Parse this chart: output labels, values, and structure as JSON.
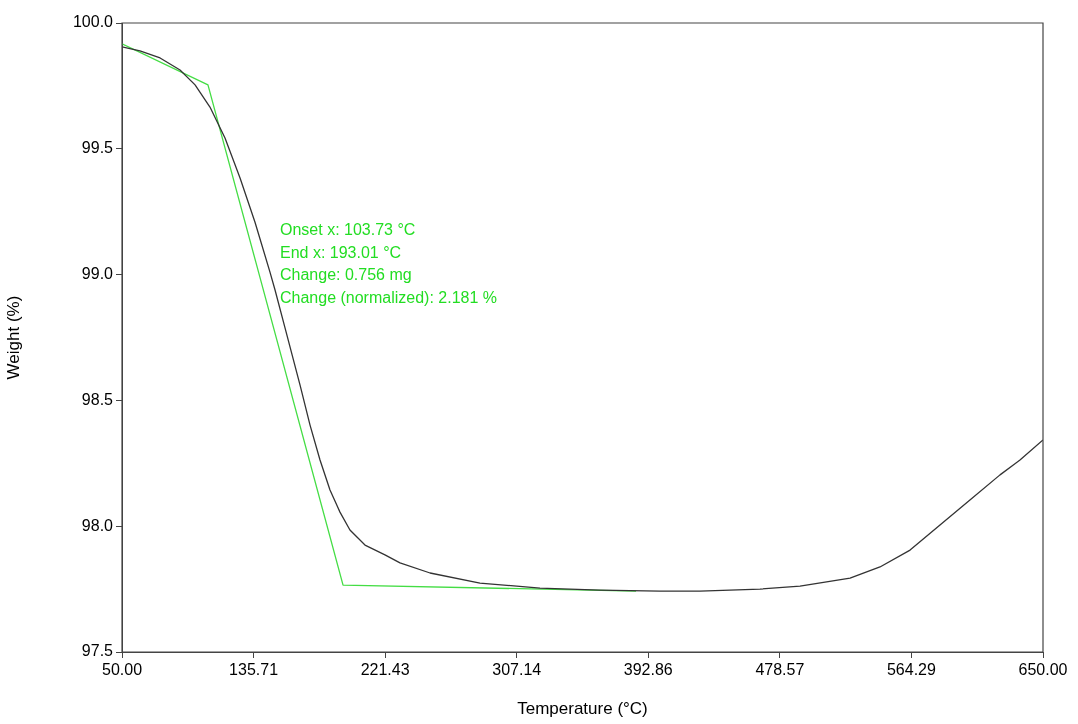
{
  "chart_data": {
    "type": "line",
    "xlabel": "Temperature (°C)",
    "ylabel": "Weight (%)",
    "xlim": [
      50,
      650
    ],
    "ylim": [
      97.5,
      100
    ],
    "xticks": [
      {
        "value": 50,
        "label": "50.00"
      },
      {
        "value": 135.71,
        "label": "135.71"
      },
      {
        "value": 221.43,
        "label": "221.43"
      },
      {
        "value": 307.14,
        "label": "307.14"
      },
      {
        "value": 392.86,
        "label": "392.86"
      },
      {
        "value": 478.57,
        "label": "478.57"
      },
      {
        "value": 564.29,
        "label": "564.29"
      },
      {
        "value": 650,
        "label": "650.00"
      }
    ],
    "yticks": [
      {
        "value": 97.5,
        "label": "97.5"
      },
      {
        "value": 98,
        "label": "98.0"
      },
      {
        "value": 98.5,
        "label": "98.5"
      },
      {
        "value": 99,
        "label": "99.0"
      },
      {
        "value": 99.5,
        "label": "99.5"
      },
      {
        "value": 100,
        "label": "100.0"
      }
    ],
    "grid": false,
    "legend": false,
    "marker": "none",
    "line_style": "solid",
    "series": [
      {
        "color": "#333333",
        "x": [
          50,
          61.7,
          74.8,
          87.8,
          97.6,
          107.3,
          117.1,
          126.9,
          136.6,
          146.4,
          149.7,
          156.2,
          166,
          172.5,
          179,
          185.5,
          192,
          198.5,
          208.3,
          221.3,
          231.1,
          250.7,
          283.2,
          322.3,
          361.4,
          400.5,
          426.5,
          465.6,
          491.7,
          524.3,
          543.8,
          563.4,
          582.9,
          602.4,
          622,
          635,
          650
        ],
        "values": [
          99.905,
          99.889,
          99.861,
          99.813,
          99.754,
          99.666,
          99.543,
          99.384,
          99.209,
          99.01,
          98.939,
          98.788,
          98.561,
          98.402,
          98.263,
          98.144,
          98.056,
          97.985,
          97.925,
          97.886,
          97.854,
          97.814,
          97.774,
          97.754,
          97.746,
          97.742,
          97.742,
          97.75,
          97.762,
          97.794,
          97.838,
          97.905,
          98.005,
          98.104,
          98.204,
          98.263,
          98.343
        ]
      },
      {
        "type": "line",
        "color": "#44dd44",
        "x": [
          50,
          106,
          194,
          384.9
        ],
        "values": [
          99.917,
          99.754,
          97.766,
          97.742
        ]
      }
    ],
    "annotations": [
      "Onset x: 103.73 °C",
      "End x: 193.01 °C",
      "Change: 0.756 mg",
      "Change (normalized): 2.181 %"
    ]
  }
}
